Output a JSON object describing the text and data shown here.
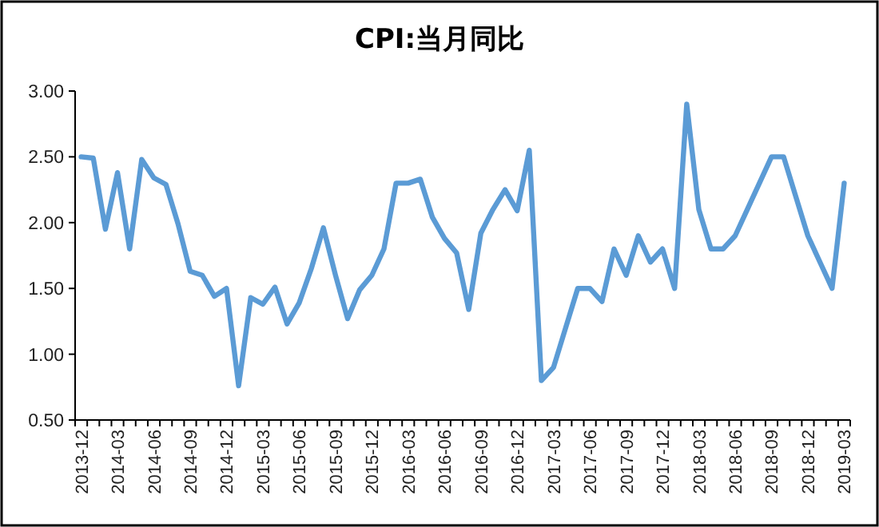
{
  "chart_data": {
    "type": "line",
    "title": "CPI:当月同比",
    "categories": [
      "2013-12",
      null,
      null,
      "2014-03",
      null,
      null,
      "2014-06",
      null,
      null,
      "2014-09",
      null,
      null,
      "2014-12",
      null,
      null,
      "2015-03",
      null,
      null,
      "2015-06",
      null,
      null,
      "2015-09",
      null,
      null,
      "2015-12",
      null,
      null,
      "2016-03",
      null,
      null,
      "2016-06",
      null,
      null,
      "2016-09",
      null,
      null,
      "2016-12",
      null,
      null,
      "2017-03",
      null,
      null,
      "2017-06",
      null,
      null,
      "2017-09",
      null,
      null,
      "2017-12",
      null,
      null,
      "2018-03",
      null,
      null,
      "2018-06",
      null,
      null,
      "2018-09",
      null,
      null,
      "2018-12",
      null,
      null,
      "2019-03"
    ],
    "series": [
      {
        "color": "#5b9bd5",
        "values": [
          2.5,
          2.49,
          1.95,
          2.38,
          1.8,
          2.48,
          2.34,
          2.29,
          1.99,
          1.63,
          1.6,
          1.44,
          1.5,
          0.76,
          1.43,
          1.38,
          1.51,
          1.23,
          1.39,
          1.65,
          1.96,
          1.6,
          1.27,
          1.49,
          1.6,
          1.8,
          2.3,
          2.3,
          2.33,
          2.04,
          1.88,
          1.77,
          1.34,
          1.92,
          2.1,
          2.25,
          2.09,
          2.55,
          0.8,
          0.9,
          1.2,
          1.5,
          1.5,
          1.4,
          1.8,
          1.6,
          1.9,
          1.7,
          1.8,
          1.5,
          2.9,
          2.1,
          1.8,
          1.8,
          1.9,
          2.1,
          2.3,
          2.5,
          2.5,
          2.2,
          1.9,
          1.7,
          1.5,
          2.3
        ]
      }
    ],
    "ylim": [
      0.5,
      3
    ],
    "yticks": [
      {
        "value": 0.5,
        "label": "0.50"
      },
      {
        "value": 1,
        "label": "1.00"
      },
      {
        "value": 1.5,
        "label": "1.50"
      },
      {
        "value": 2,
        "label": "2.00"
      },
      {
        "value": 2.5,
        "label": "2.50"
      },
      {
        "value": 3,
        "label": "3.00"
      }
    ],
    "grid": false,
    "marker": "none",
    "line_style": "solid"
  }
}
